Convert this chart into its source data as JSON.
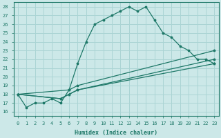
{
  "xlabel": "Humidex (Indice chaleur)",
  "bg_color": "#cce8e8",
  "line_color": "#1e7868",
  "grid_color": "#aad4d4",
  "xlim": [
    -0.5,
    23.5
  ],
  "ylim": [
    15.5,
    28.5
  ],
  "xticks": [
    0,
    1,
    2,
    3,
    4,
    5,
    6,
    7,
    8,
    9,
    10,
    11,
    12,
    13,
    14,
    15,
    16,
    17,
    18,
    19,
    20,
    21,
    22,
    23
  ],
  "yticks": [
    16,
    17,
    18,
    19,
    20,
    21,
    22,
    23,
    24,
    25,
    26,
    27,
    28
  ],
  "series1_x": [
    0,
    1,
    2,
    3,
    4,
    5,
    6,
    7,
    8,
    9,
    10,
    11,
    12,
    13,
    14,
    15,
    16,
    17,
    18,
    19,
    20,
    21,
    22,
    23
  ],
  "series1_y": [
    18,
    16.5,
    17,
    17,
    17.5,
    17,
    18.5,
    21.5,
    24,
    26,
    26.5,
    27,
    27.5,
    28,
    27.5,
    28,
    26.5,
    25,
    24.5,
    23.5,
    23,
    22,
    22,
    21.5
  ],
  "series2_x": [
    0,
    5,
    6,
    7,
    23
  ],
  "series2_y": [
    18,
    17.5,
    18,
    18.5,
    22
  ],
  "series3_x": [
    0,
    5,
    6,
    7,
    23
  ],
  "series3_y": [
    18,
    17.5,
    18,
    18.5,
    21.5
  ],
  "series4_x": [
    0,
    6,
    7,
    23
  ],
  "series4_y": [
    18,
    18.5,
    19,
    23
  ]
}
